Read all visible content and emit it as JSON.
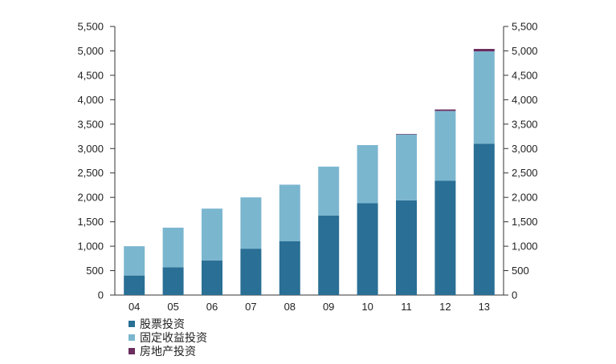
{
  "colors": {
    "equity": "#2a6f95",
    "fixed_income": "#7bb6cf",
    "real_estate": "#6b2d5e",
    "axis": "#333333"
  },
  "chart_data": {
    "type": "bar",
    "stacked": true,
    "title": "",
    "xlabel": "",
    "ylabel": "",
    "ylim": [
      0,
      5500
    ],
    "y_ticks": [
      "0",
      "500",
      "1,000",
      "1,500",
      "2,000",
      "2,500",
      "3,000",
      "3,500",
      "4,000",
      "4,500",
      "5,000",
      "5,500"
    ],
    "y_tick_values": [
      0,
      500,
      1000,
      1500,
      2000,
      2500,
      3000,
      3500,
      4000,
      4500,
      5000,
      5500
    ],
    "secondary_y_axis": true,
    "grid": false,
    "legend_position": "bottom-left",
    "categories": [
      "04",
      "05",
      "06",
      "07",
      "08",
      "09",
      "10",
      "11",
      "12",
      "13"
    ],
    "series": [
      {
        "name": "股票投资",
        "color_key": "equity",
        "values": [
          400,
          570,
          710,
          950,
          1100,
          1630,
          1880,
          1940,
          2340,
          3100
        ]
      },
      {
        "name": "固定收益投资",
        "color_key": "fixed_income",
        "values": [
          600,
          810,
          1060,
          1050,
          1160,
          1000,
          1190,
          1350,
          1430,
          1890
        ]
      },
      {
        "name": "房地产投资",
        "color_key": "real_estate",
        "values": [
          0,
          0,
          0,
          0,
          0,
          0,
          0,
          10,
          30,
          50
        ]
      }
    ]
  }
}
